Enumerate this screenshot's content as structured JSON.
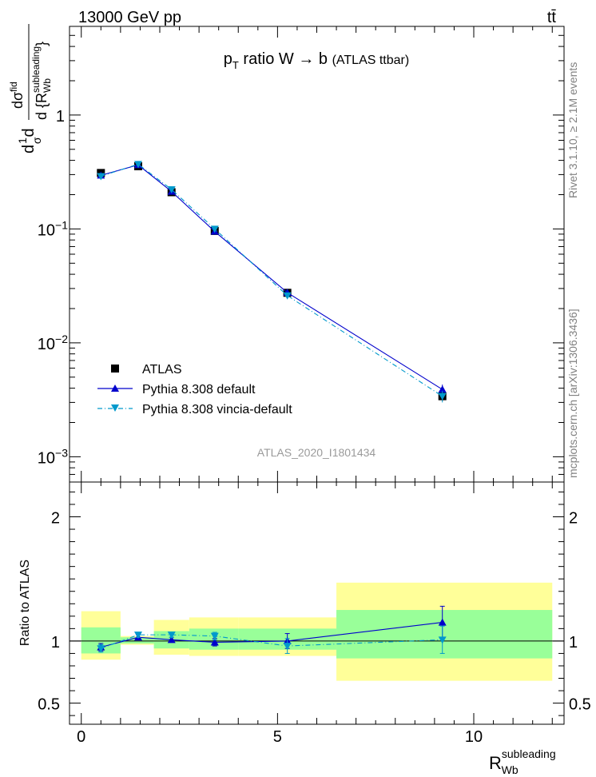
{
  "header": {
    "left": "13000 GeV pp",
    "right": "tt̄"
  },
  "side_labels": {
    "rivet": "Rivet 3.1.10, ≥ 2.1M events",
    "mcplots": "mcplots.cern.ch [arXiv:1306.3436]"
  },
  "colors": {
    "data": "#000000",
    "pythia_default": "#0000cc",
    "vincia_default": "#0099cc",
    "band_inner": "#99ff99",
    "band_outer": "#ffff99"
  },
  "chart_data": [
    {
      "type": "scatter",
      "panel": "main",
      "title": "p_T ratio W → b (ATLAS ttbar)",
      "title_parts": {
        "p": "p",
        "sub": "T",
        "rest": " ratio W ",
        "arrow": "→",
        "b": " b ",
        "small": "(ATLAS ttbar)"
      },
      "analysis_label": "ATLAS_2020_I1801434",
      "ylabel": "d(1/σ)dσ^fid / d{R_Wb^subleading}",
      "yscale": "log",
      "ylim": [
        0.0006,
        6
      ],
      "y_ticks": [
        {
          "value": 0.001,
          "base": "10",
          "exp": "−3"
        },
        {
          "value": 0.01,
          "base": "10",
          "exp": "−2"
        },
        {
          "value": 0.1,
          "base": "10",
          "exp": "−1"
        },
        {
          "value": 1,
          "base": "1",
          "exp": ""
        }
      ],
      "xlim": [
        -0.3,
        12.3
      ],
      "legend_position": "bottom-left",
      "series": [
        {
          "name": "ATLAS",
          "marker": "square",
          "x": [
            0.5,
            1.45,
            2.3,
            3.4,
            5.25,
            9.2
          ],
          "y": [
            0.31,
            0.355,
            0.21,
            0.096,
            0.0275,
            0.0034
          ],
          "yerr": [
            0.008,
            0.008,
            0.005,
            0.002,
            0.0008,
            0.0003
          ]
        },
        {
          "name": "Pythia 8.308 default",
          "marker": "triangle-up",
          "line": "solid",
          "x": [
            0.5,
            1.45,
            2.3,
            3.4,
            5.25,
            9.2
          ],
          "y": [
            0.295,
            0.365,
            0.213,
            0.095,
            0.0276,
            0.0039
          ],
          "yerr": [
            0.003,
            0.003,
            0.002,
            0.001,
            0.0004,
            0.0004
          ]
        },
        {
          "name": "Pythia 8.308 vincia-default",
          "marker": "triangle-down",
          "line": "dash-dot",
          "x": [
            0.5,
            1.45,
            2.3,
            3.4,
            5.25,
            9.2
          ],
          "y": [
            0.29,
            0.37,
            0.222,
            0.1,
            0.026,
            0.0034
          ],
          "yerr": [
            0.003,
            0.003,
            0.002,
            0.001,
            0.0004,
            0.0004
          ]
        }
      ]
    },
    {
      "type": "scatter",
      "panel": "ratio",
      "ylabel": "Ratio to ATLAS",
      "xlabel": "R_Wb^subleading",
      "xlabel_parts": {
        "main": "R",
        "sup": "subleading",
        "sub": "Wb"
      },
      "xlim": [
        -0.3,
        12.3
      ],
      "ylim": [
        0.33,
        2.28
      ],
      "x_ticks": [
        0,
        5,
        10
      ],
      "y_ticks": [
        0.5,
        1,
        2
      ],
      "bins": [
        {
          "lo": 0.0,
          "hi": 1.0,
          "inner": [
            0.9,
            1.11
          ],
          "outer": [
            0.85,
            1.24
          ]
        },
        {
          "lo": 1.0,
          "hi": 1.85,
          "inner": [
            0.98,
            1.03
          ],
          "outer": [
            0.97,
            1.04
          ]
        },
        {
          "lo": 1.85,
          "hi": 2.75,
          "inner": [
            0.94,
            1.08
          ],
          "outer": [
            0.89,
            1.17
          ]
        },
        {
          "lo": 2.75,
          "hi": 4.0,
          "inner": [
            0.93,
            1.1
          ],
          "outer": [
            0.88,
            1.19
          ]
        },
        {
          "lo": 4.0,
          "hi": 6.5,
          "inner": [
            0.93,
            1.1
          ],
          "outer": [
            0.88,
            1.19
          ]
        },
        {
          "lo": 6.5,
          "hi": 12.0,
          "inner": [
            0.86,
            1.25
          ],
          "outer": [
            0.68,
            1.47
          ]
        }
      ],
      "series": [
        {
          "name": "Pythia 8.308 default",
          "marker": "triangle-up",
          "line": "solid",
          "x": [
            0.5,
            1.45,
            2.3,
            3.4,
            5.25,
            9.2
          ],
          "y": [
            0.95,
            1.03,
            1.01,
            0.99,
            1.0,
            1.15
          ],
          "yerr": [
            0.03,
            0.02,
            0.02,
            0.03,
            0.06,
            0.13
          ]
        },
        {
          "name": "Pythia 8.308 vincia-default",
          "marker": "triangle-down",
          "line": "dash-dot",
          "x": [
            0.5,
            1.45,
            2.3,
            3.4,
            5.25,
            9.2
          ],
          "y": [
            0.94,
            1.05,
            1.05,
            1.04,
            0.96,
            1.01
          ],
          "yerr": [
            0.03,
            0.02,
            0.02,
            0.03,
            0.06,
            0.11
          ]
        }
      ]
    }
  ]
}
